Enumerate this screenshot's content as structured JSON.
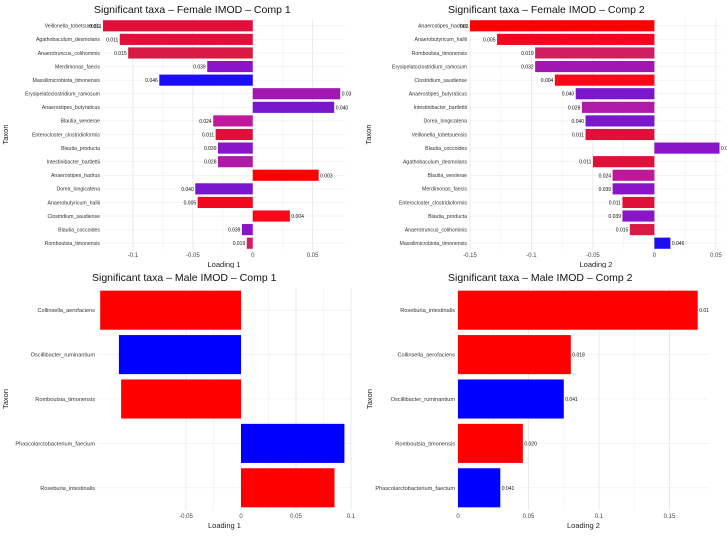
{
  "chart_data": [
    {
      "type": "bar",
      "orientation": "horizontal",
      "title": "Significant taxa – Female IMOD – Comp 1",
      "xlabel": "Loading 1",
      "ylabel": "Taxon",
      "xlim": [
        -0.125,
        0.077
      ],
      "xticks": [
        -0.1,
        -0.05,
        0,
        0.05
      ],
      "xtick_labels": [
        "-0.1",
        "-0.05",
        "0",
        "0.05"
      ],
      "grid": true,
      "bars": [
        {
          "taxon": "Veillonella_tobetsuensis",
          "value": -0.125,
          "label": "0.011",
          "color": "#e0103a"
        },
        {
          "taxon": "Agathobaculum_desmolans",
          "value": -0.111,
          "label": "0.011",
          "color": "#e0103a"
        },
        {
          "taxon": "Anaerotruncus_colihominis",
          "value": -0.104,
          "label": "0.015",
          "color": "#d81a45"
        },
        {
          "taxon": "Merdimonas_faecis",
          "value": -0.038,
          "label": "0.039",
          "color": "#8a14c8"
        },
        {
          "taxon": "Massilimicrobiota_timonensis",
          "value": -0.078,
          "label": "0.046",
          "color": "#1c0ef2"
        },
        {
          "taxon": "Erysipelatoclostridium_ramosum",
          "value": 0.073,
          "label": "0.03",
          "color": "#a018b0"
        },
        {
          "taxon": "Anaerostipes_butyraticus",
          "value": 0.068,
          "label": "0.040",
          "color": "#7a16cc"
        },
        {
          "taxon": "Blautia_wexlerae",
          "value": -0.033,
          "label": "0.024",
          "color": "#c0189a"
        },
        {
          "taxon": "Enterocloster_clostridioformis",
          "value": -0.031,
          "label": "0.011",
          "color": "#e0103a"
        },
        {
          "taxon": "Blautia_producta",
          "value": -0.029,
          "label": "0.039",
          "color": "#8a14c8"
        },
        {
          "taxon": "Intestinibacter_bartlettii",
          "value": -0.029,
          "label": "0.028",
          "color": "#b01aa8"
        },
        {
          "taxon": "Anaerostipes_hadrus",
          "value": 0.055,
          "label": "0.003",
          "color": "#ff0000"
        },
        {
          "taxon": "Dorea_longicatena",
          "value": -0.048,
          "label": "0.040",
          "color": "#7a16cc"
        },
        {
          "taxon": "Anaerobutyricum_hallii",
          "value": -0.046,
          "label": "0.005",
          "color": "#f00820"
        },
        {
          "taxon": "Clostridium_saudiense",
          "value": 0.031,
          "label": "0.004",
          "color": "#f80818"
        },
        {
          "taxon": "Blautia_coccoides",
          "value": -0.009,
          "label": "0.039",
          "color": "#8a14c8"
        },
        {
          "taxon": "Romboutsia_timonensis",
          "value": -0.005,
          "label": "0.019",
          "color": "#d01e60"
        }
      ]
    },
    {
      "type": "bar",
      "orientation": "horizontal",
      "title": "Significant taxa – Female IMOD – Comp 2",
      "xlabel": "Loading 2",
      "ylabel": "Taxon",
      "xlim": [
        -0.15,
        0.055
      ],
      "xticks": [
        -0.15,
        -0.1,
        -0.05,
        0,
        0.05
      ],
      "xtick_labels": [
        "-0.15",
        "-0.1",
        "-0.05",
        "0",
        "0.05"
      ],
      "grid": true,
      "bars": [
        {
          "taxon": "Anaerostipes_hadrus",
          "value": -0.15,
          "label": "003",
          "color": "#ff0000"
        },
        {
          "taxon": "Anaerobutyricum_hallii",
          "value": -0.128,
          "label": "0.005",
          "color": "#f00820"
        },
        {
          "taxon": "Romboutsia_timonensis",
          "value": -0.097,
          "label": "0.019",
          "color": "#d01e60"
        },
        {
          "taxon": "Erysipelatoclostridium_ramosum",
          "value": -0.097,
          "label": "0.032",
          "color": "#a018b0"
        },
        {
          "taxon": "Clostridium_saudiense",
          "value": -0.081,
          "label": "0.004",
          "color": "#f80818"
        },
        {
          "taxon": "Anaerostipes_butyraticus",
          "value": -0.064,
          "label": "0.040",
          "color": "#7a16cc"
        },
        {
          "taxon": "Intestinibacter_bartlettii",
          "value": -0.059,
          "label": "0.028",
          "color": "#b01aa8"
        },
        {
          "taxon": "Dorea_longicatena",
          "value": -0.056,
          "label": "0.040",
          "color": "#7a16cc"
        },
        {
          "taxon": "Veillonella_tobetsuensis",
          "value": -0.056,
          "label": "0.011",
          "color": "#e0103a"
        },
        {
          "taxon": "Blautia_coccoides",
          "value": 0.053,
          "label": "0.0",
          "color": "#8a14c8"
        },
        {
          "taxon": "Agathobaculum_desmolans",
          "value": -0.05,
          "label": "0.011",
          "color": "#e0103a"
        },
        {
          "taxon": "Blautia_wexlerae",
          "value": -0.034,
          "label": "0.024",
          "color": "#c0189a"
        },
        {
          "taxon": "Merdimonas_faecis",
          "value": -0.034,
          "label": "0.039",
          "color": "#8a14c8"
        },
        {
          "taxon": "Enterocloster_clostridioformis",
          "value": -0.026,
          "label": "0.011",
          "color": "#e0103a"
        },
        {
          "taxon": "Blautia_producta",
          "value": -0.026,
          "label": "0.039",
          "color": "#8a14c8"
        },
        {
          "taxon": "Anaerotruncus_colihominis",
          "value": -0.02,
          "label": "0.015",
          "color": "#d81a45"
        },
        {
          "taxon": "Massilimicrobiota_timonensis",
          "value": 0.013,
          "label": "0.046",
          "color": "#1c0ef2"
        }
      ]
    },
    {
      "type": "bar",
      "orientation": "horizontal",
      "title": "Significant taxa – Male IMOD – Comp 1",
      "xlabel": "Loading 1",
      "ylabel": "Taxon",
      "xlim": [
        -0.13,
        0.1
      ],
      "xticks": [
        -0.05,
        0,
        0.05,
        0.1
      ],
      "xtick_labels": [
        "-0.05",
        "0",
        "0.05",
        "0.1"
      ],
      "grid": true,
      "bars": [
        {
          "taxon": "Collinsella_aerofaciens",
          "value": -0.128,
          "label": "",
          "color": "#ff0000"
        },
        {
          "taxon": "Oscillibacter_ruminantium",
          "value": -0.111,
          "label": "",
          "color": "#0000ff"
        },
        {
          "taxon": "Romboutsia_timonensis",
          "value": -0.109,
          "label": "",
          "color": "#ff0000"
        },
        {
          "taxon": "Phascolarctobacterium_faecium",
          "value": 0.094,
          "label": "",
          "color": "#0000ff"
        },
        {
          "taxon": "Roseburia_intestinalis",
          "value": 0.085,
          "label": "",
          "color": "#ff0000"
        }
      ]
    },
    {
      "type": "bar",
      "orientation": "horizontal",
      "title": "Significant taxa – Male IMOD – Comp 2",
      "xlabel": "Loading 2",
      "ylabel": "Taxon",
      "xlim": [
        0,
        0.178
      ],
      "xticks": [
        0,
        0.05,
        0.1,
        0.15
      ],
      "xtick_labels": [
        "0",
        "0.05",
        "0.1",
        "0.15"
      ],
      "grid": true,
      "bars": [
        {
          "taxon": "Roseburia_intestinalis",
          "value": 0.17,
          "label": "0.01",
          "color": "#ff0000"
        },
        {
          "taxon": "Collinsella_aerofaciens",
          "value": 0.08,
          "label": "0.018",
          "color": "#ff0000"
        },
        {
          "taxon": "Oscillibacter_ruminantium",
          "value": 0.075,
          "label": "0.041",
          "color": "#0000ff"
        },
        {
          "taxon": "Romboutsia_timonensis",
          "value": 0.046,
          "label": "0.020",
          "color": "#ff0000"
        },
        {
          "taxon": "Phascolarctobacterium_faecium",
          "value": 0.03,
          "label": "0.041",
          "color": "#0000ff"
        }
      ]
    }
  ]
}
